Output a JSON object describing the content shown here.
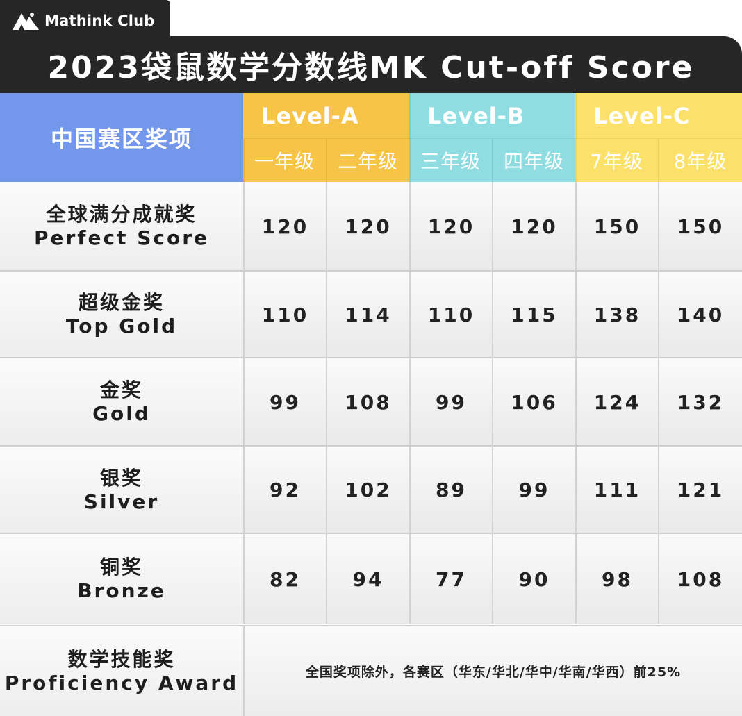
{
  "brand": {
    "name": "Mathink Club",
    "logo_icon": "mountain-logo-icon"
  },
  "title": "2023袋鼠数学分数线MK Cut-off Score",
  "header": {
    "award_column": "中国赛区奖项",
    "levels": [
      {
        "label": "Level-A",
        "color": "#f6c446",
        "grades": [
          "一年级",
          "二年级"
        ]
      },
      {
        "label": "Level-B",
        "color": "#8fdde1",
        "grades": [
          "三年级",
          "四年级"
        ]
      },
      {
        "label": "Level-C",
        "color": "#fbe16a",
        "grades": [
          "7年级",
          "8年级"
        ]
      }
    ]
  },
  "rows": [
    {
      "cn": "全球满分成就奖",
      "en": "Perfect Score",
      "scores": [
        "120",
        "120",
        "120",
        "120",
        "150",
        "150"
      ]
    },
    {
      "cn": "超级金奖",
      "en": "Top Gold",
      "scores": [
        "110",
        "114",
        "110",
        "115",
        "138",
        "140"
      ]
    },
    {
      "cn": "金奖",
      "en": "Gold",
      "scores": [
        "99",
        "108",
        "99",
        "106",
        "124",
        "132"
      ]
    },
    {
      "cn": "银奖",
      "en": "Silver",
      "scores": [
        "92",
        "102",
        "89",
        "99",
        "111",
        "121"
      ]
    },
    {
      "cn": "铜奖",
      "en": "Bronze",
      "scores": [
        "82",
        "94",
        "77",
        "90",
        "98",
        "108"
      ]
    }
  ],
  "proficiency": {
    "cn": "数学技能奖",
    "en": "Proficiency Award",
    "note": "全国奖项除外，各赛区（华东/华北/华中/华南/华西）前25%"
  },
  "colors": {
    "dark": "#262626",
    "award_header": "#7397ea",
    "level_a": "#f6c446",
    "level_b": "#8fdde1",
    "level_c": "#fbe16a"
  }
}
